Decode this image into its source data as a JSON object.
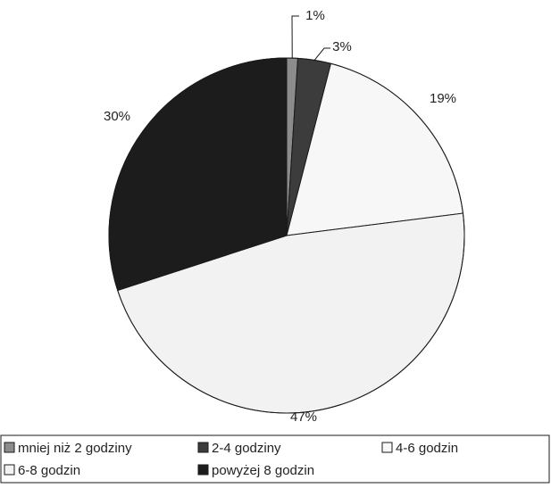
{
  "chart_data": {
    "type": "pie",
    "title": "",
    "slices": [
      {
        "label": "mniej niż 2 godziny",
        "value": 1,
        "display": "1%",
        "color": "#8c8c8c"
      },
      {
        "label": "2-4 godziny",
        "value": 3,
        "display": "3%",
        "color": "#3c3c3c"
      },
      {
        "label": "4-6 godzin",
        "value": 19,
        "display": "19%",
        "color": "#f7f7f7"
      },
      {
        "label": "6-8 godzin",
        "value": 47,
        "display": "47%",
        "color": "#f2f2f2"
      },
      {
        "label": "powyżej 8 godzin",
        "value": 30,
        "display": "30%",
        "color": "#1c1c1c"
      }
    ],
    "legend_position": "bottom"
  }
}
